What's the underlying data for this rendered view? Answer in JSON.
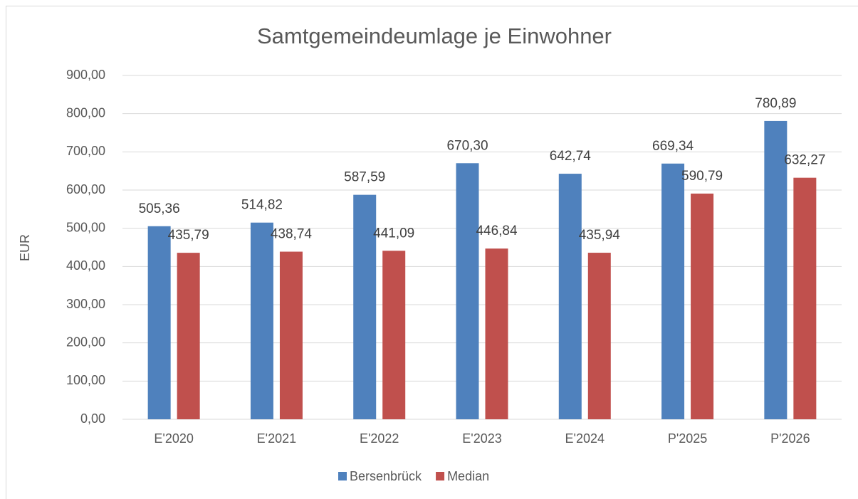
{
  "chart_data": {
    "type": "bar",
    "title": "Samtgemeindeumlage je Einwohner",
    "y_label": "EUR",
    "categories": [
      "E'2020",
      "E'2021",
      "E'2022",
      "E'2023",
      "E'2024",
      "P'2025",
      "P'2026"
    ],
    "series": [
      {
        "name": "Bersenbrück",
        "color": "#4f81bd",
        "values": [
          505.36,
          514.82,
          587.59,
          670.3,
          642.74,
          669.34,
          780.89
        ],
        "value_labels": [
          "505,36",
          "514,82",
          "587,59",
          "670,30",
          "642,74",
          "669,34",
          "780,89"
        ]
      },
      {
        "name": "Median",
        "color": "#c0504d",
        "values": [
          435.79,
          438.74,
          441.09,
          446.84,
          435.94,
          590.79,
          632.27
        ],
        "value_labels": [
          "435,79",
          "438,74",
          "441,09",
          "446,84",
          "435,94",
          "590,79",
          "632,27"
        ]
      }
    ],
    "ylim": [
      0,
      900
    ],
    "yticks": [
      {
        "value": 0,
        "label": "0,00"
      },
      {
        "value": 100,
        "label": "100,00"
      },
      {
        "value": 200,
        "label": "200,00"
      },
      {
        "value": 300,
        "label": "300,00"
      },
      {
        "value": 400,
        "label": "400,00"
      },
      {
        "value": 500,
        "label": "500,00"
      },
      {
        "value": 600,
        "label": "600,00"
      },
      {
        "value": 700,
        "label": "700,00"
      },
      {
        "value": 800,
        "label": "800,00"
      },
      {
        "value": 900,
        "label": "900,00"
      }
    ],
    "grid": true,
    "legend": "bottom"
  }
}
